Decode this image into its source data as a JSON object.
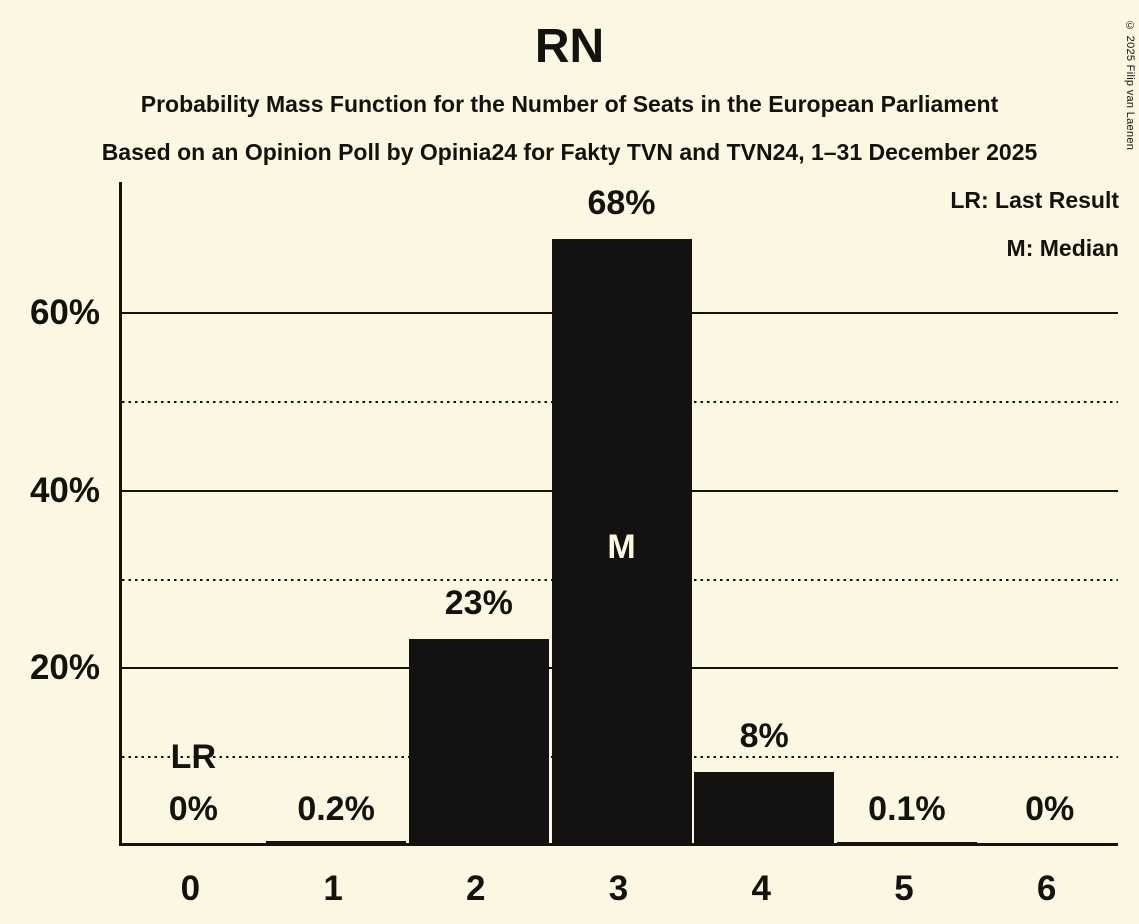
{
  "colors": {
    "background": "#FBF7E2",
    "ink": "#14120C",
    "bar": "#131210"
  },
  "header": {
    "title": "RN",
    "subtitle1": "Probability Mass Function for the Number of Seats in the European Parliament",
    "subtitle2": "Based on an Opinion Poll by Opinia24 for Fakty TVN and TVN24, 1–31 December 2025"
  },
  "legend": {
    "lr_label": "LR: Last Result",
    "median_label": "M: Median"
  },
  "copyright": "© 2025 Filip van Laenen",
  "chart_data": {
    "type": "bar",
    "title": "RN",
    "categories": [
      "0",
      "1",
      "2",
      "3",
      "4",
      "5",
      "6"
    ],
    "values": [
      0,
      0.2,
      23,
      68,
      8,
      0.1,
      0
    ],
    "value_labels": [
      "0%",
      "0.2%",
      "23%",
      "68%",
      "8%",
      "0.1%",
      "0%"
    ],
    "bar_color": "#131210",
    "grid": "horizontal",
    "legend_position": "top-right",
    "y_axis": {
      "tick_labels": [
        "20%",
        "40%",
        "60%"
      ],
      "tick_values": [
        20,
        40,
        60
      ],
      "solid_gridlines": [
        20,
        40,
        60
      ],
      "dotted_gridlines": [
        10,
        30,
        50
      ],
      "range": [
        0,
        74.8
      ]
    },
    "annotations": [
      {
        "label": "LR",
        "meaning": "Last Result",
        "category": "0"
      },
      {
        "label": "M",
        "meaning": "Median",
        "category": "3"
      }
    ]
  }
}
